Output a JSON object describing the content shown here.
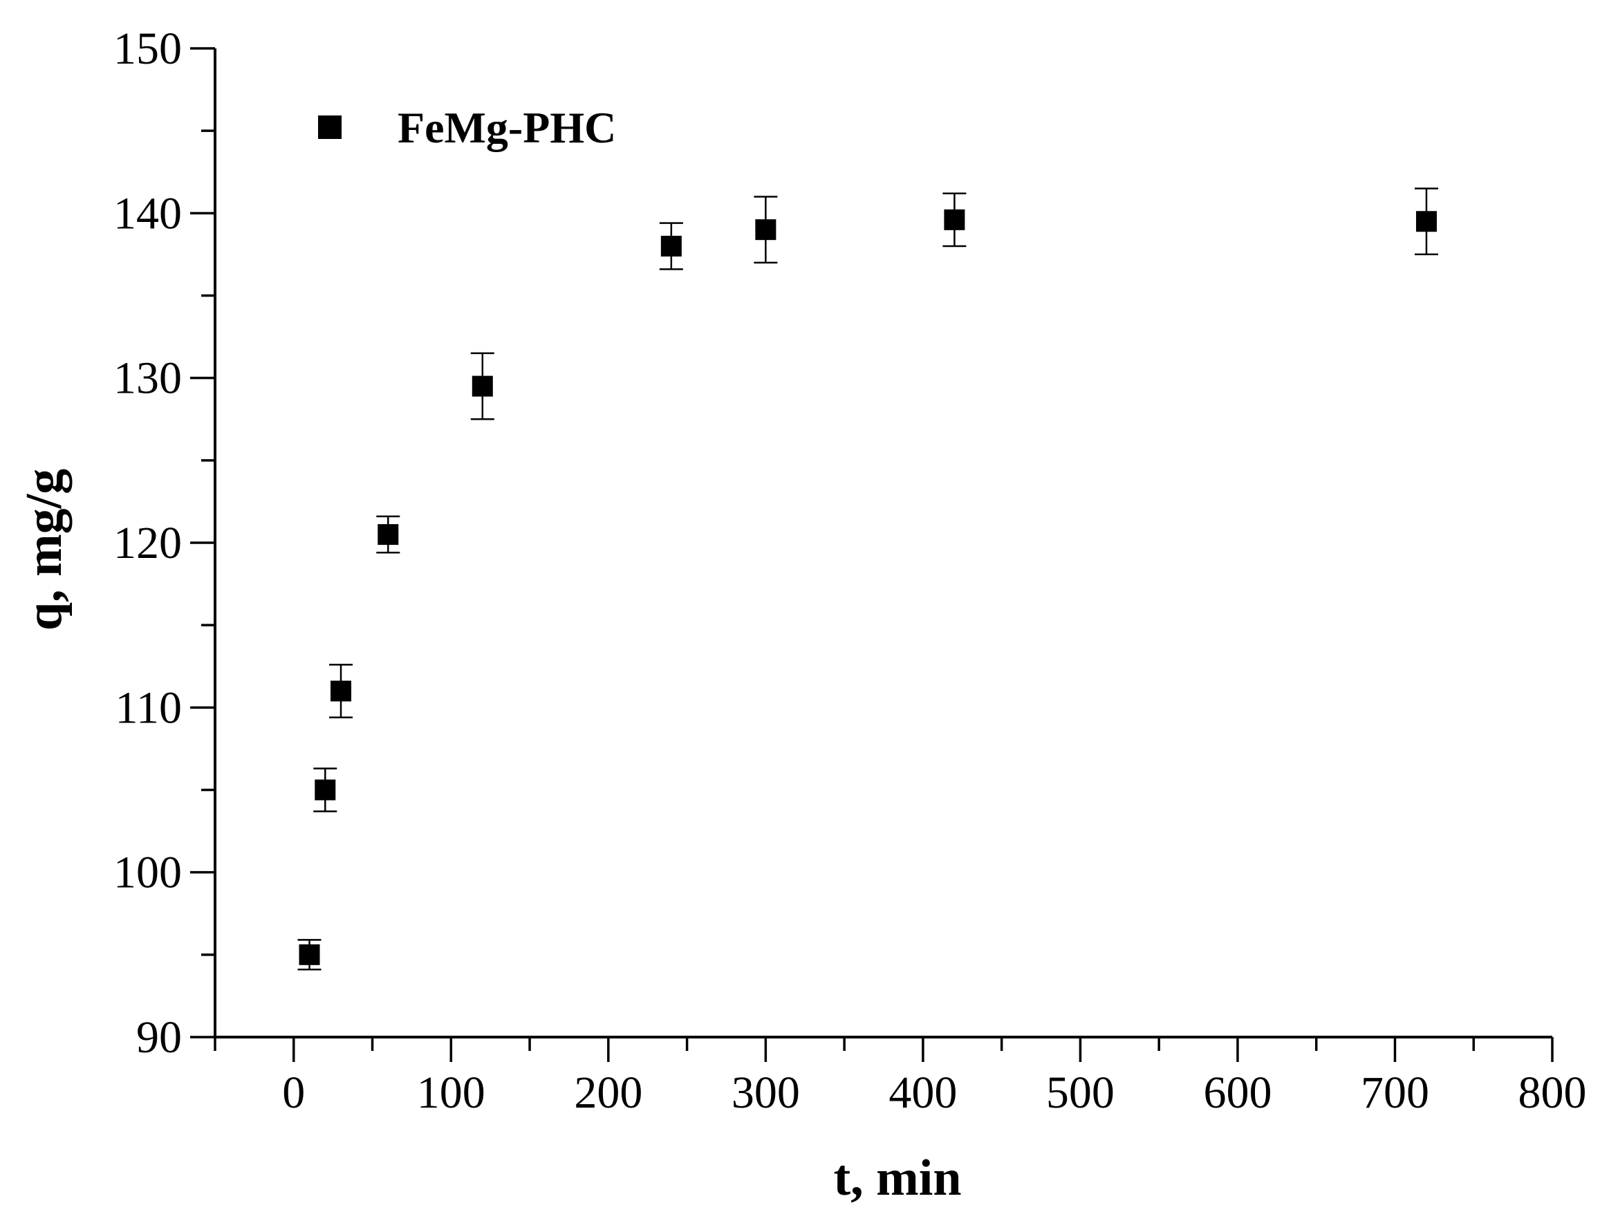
{
  "chart_data": {
    "type": "scatter",
    "xlabel": "t, min",
    "ylabel": "q, mg/g",
    "xlim": [
      -50,
      800
    ],
    "ylim": [
      90,
      150
    ],
    "x_ticks": [
      0,
      100,
      200,
      300,
      400,
      500,
      600,
      700,
      800
    ],
    "y_ticks": [
      90,
      100,
      110,
      120,
      130,
      140,
      150
    ],
    "x_minor_step": 50,
    "y_minor_step": 5,
    "grid": false,
    "legend_position": "top-left",
    "marker": "square",
    "colors": {
      "marker": "#000000",
      "axis": "#000000"
    },
    "series": [
      {
        "name": "FeMg-PHC",
        "x": [
          10,
          20,
          30,
          60,
          120,
          240,
          300,
          420,
          720
        ],
        "y": [
          95.0,
          105.0,
          111.0,
          120.5,
          129.5,
          138.0,
          139.0,
          139.6,
          139.5
        ],
        "error": [
          0.9,
          1.3,
          1.6,
          1.1,
          2.0,
          1.4,
          2.0,
          1.6,
          2.0
        ]
      }
    ]
  }
}
